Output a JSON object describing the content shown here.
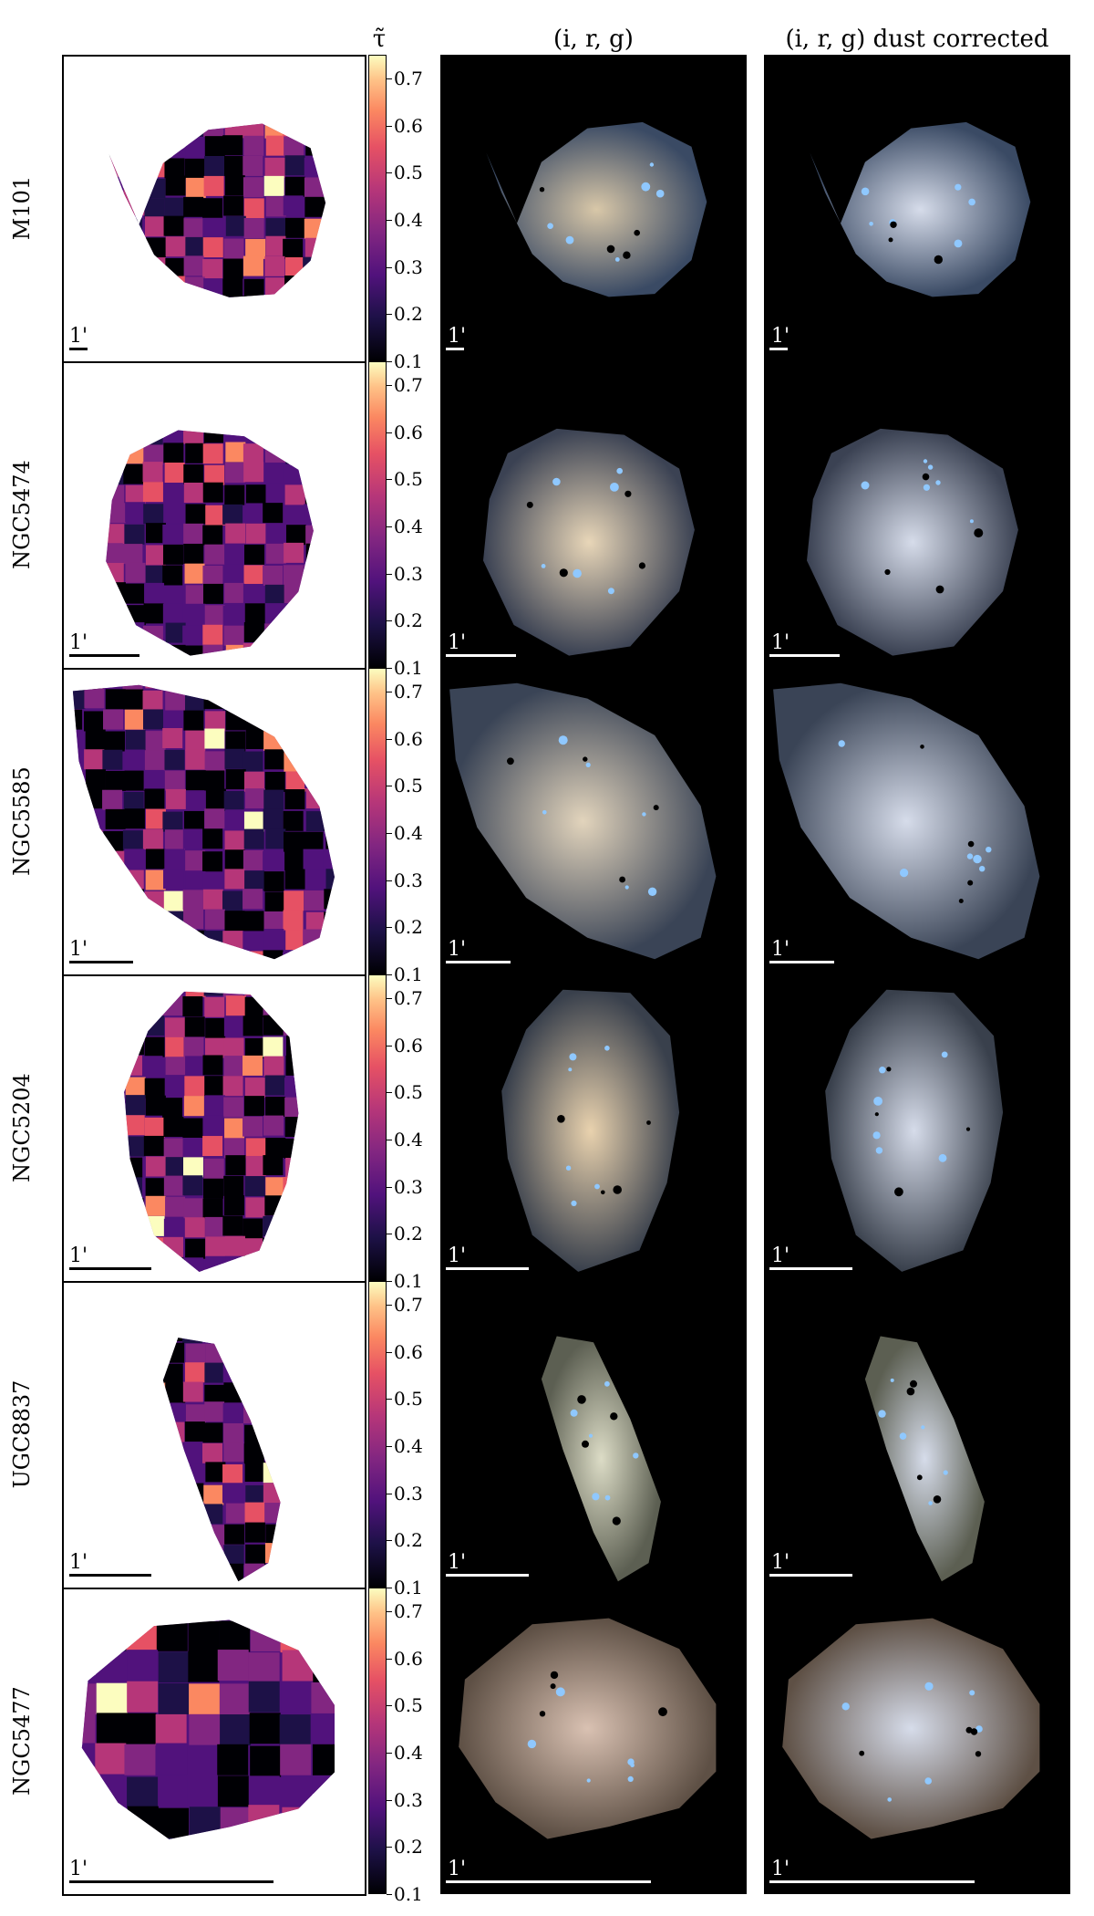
{
  "columns": {
    "tau_symbol": "τ̃",
    "rgb": "(i, r, g)",
    "rgb_corrected": "(i, r, g) dust corrected"
  },
  "scale_label": "1'",
  "colorbar_ticks": [
    "0.7",
    "0.6",
    "0.5",
    "0.4",
    "0.3",
    "0.2",
    "0.1"
  ],
  "colormap": "magma",
  "rows": [
    {
      "name": "M101",
      "bar_length": 0.06
    },
    {
      "name": "NGC5474",
      "bar_length": 0.23
    },
    {
      "name": "NGC5585",
      "bar_length": 0.21
    },
    {
      "name": "NGC5204",
      "bar_length": 0.27
    },
    {
      "name": "UGC8837",
      "bar_length": 0.27
    },
    {
      "name": "NGC5477",
      "bar_length": 0.67
    }
  ]
}
